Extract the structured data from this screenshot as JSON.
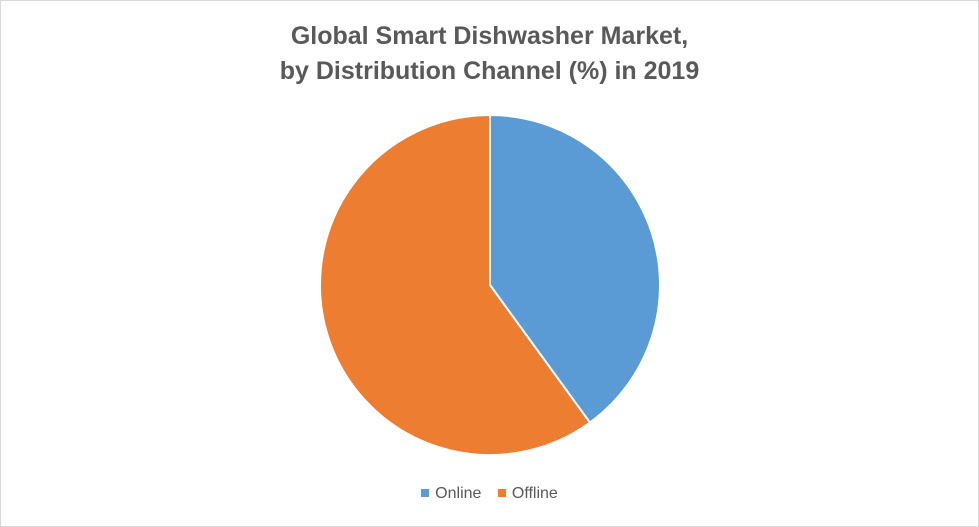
{
  "chart_data": {
    "type": "pie",
    "title_lines": [
      "Global Smart Dishwasher Market,",
      "by Distribution Channel (%) in 2019"
    ],
    "slices": [
      {
        "name": "Online",
        "value": 40,
        "color": "#5b9bd5"
      },
      {
        "name": "Offline",
        "value": 60,
        "color": "#ed7d31"
      }
    ],
    "start_angle_deg": 0,
    "direction": "clockwise",
    "legend_position": "bottom"
  }
}
